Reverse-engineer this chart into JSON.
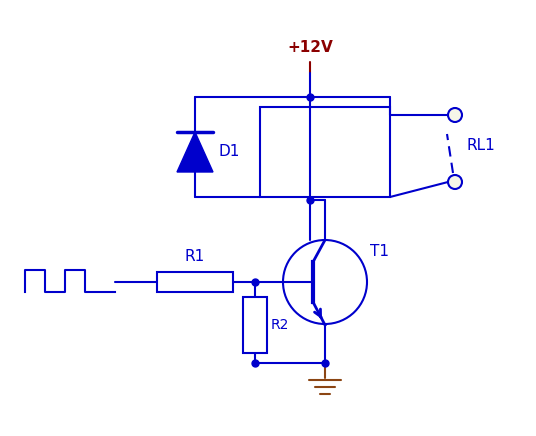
{
  "bg_color": "#ffffff",
  "blue": "#0000cc",
  "dark_red": "#8b0000",
  "brown": "#8b4513",
  "figsize": [
    5.36,
    4.36
  ],
  "dpi": 100,
  "vcc_label": "+12V",
  "d1_label": "D1",
  "r1_label": "R1",
  "r2_label": "R2",
  "t1_label": "T1",
  "rl1_label": "RL1"
}
